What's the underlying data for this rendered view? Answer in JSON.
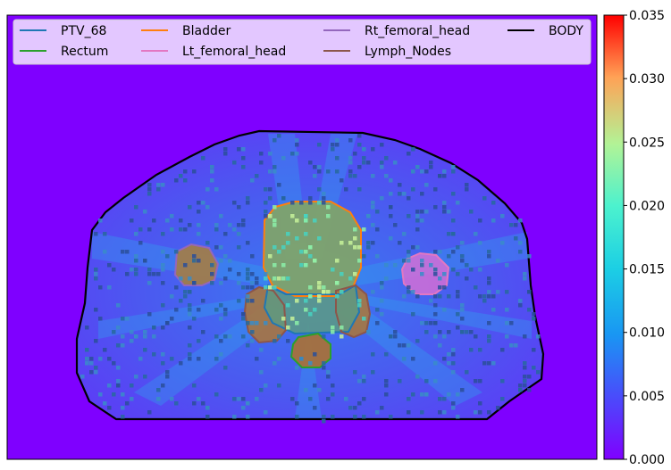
{
  "legend": {
    "items": [
      {
        "label": "PTV_68",
        "color": "#1f77b4"
      },
      {
        "label": "Rectum",
        "color": "#2ca02c"
      },
      {
        "label": "Bladder",
        "color": "#ff7f0e"
      },
      {
        "label": "Lt_femoral_head",
        "color": "#e377c2"
      },
      {
        "label": "Rt_femoral_head",
        "color": "#9467bd"
      },
      {
        "label": "Lymph_Nodes",
        "color": "#8c564b"
      },
      {
        "label": "BODY",
        "color": "#000000"
      }
    ]
  },
  "colorbar": {
    "colormap": "rainbow",
    "vmin": 0.0,
    "vmax": 0.035,
    "ticks": [
      "0.000",
      "0.005",
      "0.010",
      "0.015",
      "0.020",
      "0.025",
      "0.030",
      "0.035"
    ]
  },
  "image": {
    "background_color": "#7f00ff",
    "description_hidden": true
  }
}
